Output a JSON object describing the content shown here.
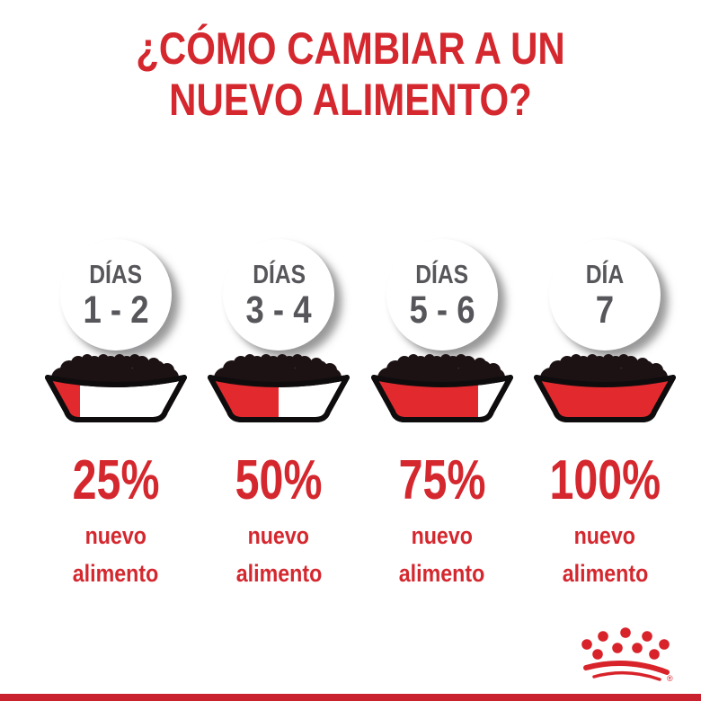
{
  "title": "¿CÓMO CAMBIAR A UN\nNUEVO ALIMENTO?",
  "columns": [
    {
      "day_label": "DÍAS",
      "day_range": "1 - 2",
      "fill_percent": 25,
      "percent_label": "25%",
      "caption_line1": "nuevo",
      "caption_line2": "alimento"
    },
    {
      "day_label": "DÍAS",
      "day_range": "3 - 4",
      "fill_percent": 50,
      "percent_label": "50%",
      "caption_line1": "nuevo",
      "caption_line2": "alimento"
    },
    {
      "day_label": "DÍAS",
      "day_range": "5 - 6",
      "fill_percent": 75,
      "percent_label": "75%",
      "caption_line1": "nuevo",
      "caption_line2": "alimento"
    },
    {
      "day_label": "DÍA",
      "day_range": "7",
      "fill_percent": 100,
      "percent_label": "100%",
      "caption_line1": "nuevo",
      "caption_line2": "alimento"
    }
  ],
  "logo": {
    "name": "Royal Canin crown",
    "registered_mark": "®"
  },
  "colors": {
    "title_red": "#d4272e",
    "bowl_red": "#e22a2e",
    "bar_red": "#c9222e",
    "logo_red": "#d8232a",
    "day_text_gray": "#57565a",
    "kibble_black": "#1c1214",
    "outline_black": "#0f0c0d",
    "background": "#ffffff"
  },
  "chart_data": {
    "type": "bar",
    "title": "¿Cómo cambiar a un nuevo alimento?",
    "categories": [
      "Días 1 - 2",
      "Días 3 - 4",
      "Días 5 - 6",
      "Día 7"
    ],
    "values": [
      25,
      50,
      75,
      100
    ],
    "unit": "% nuevo alimento",
    "ylim": [
      0,
      100
    ]
  }
}
